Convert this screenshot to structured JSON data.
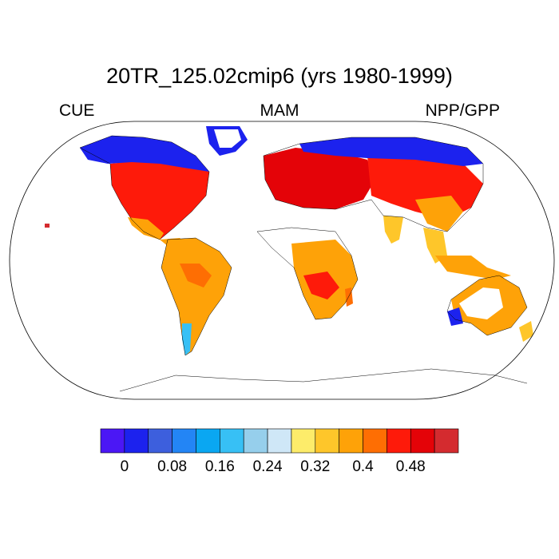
{
  "title": "20TR_125.02cmip6 (yrs 1980-1999)",
  "left_label": "CUE",
  "center_label": "MAM",
  "right_label": "NPP/GPP",
  "colorbar": {
    "colors": [
      "#4b17f5",
      "#1c22ee",
      "#3d5fdd",
      "#2385f5",
      "#0aa7f2",
      "#37c0f5",
      "#96cfec",
      "#cfe7f7",
      "#fdec6a",
      "#fec62a",
      "#fea208",
      "#fe6e03",
      "#fe1a0a",
      "#e40308",
      "#d42b2f"
    ],
    "labels": [
      "0",
      "0.08",
      "0.16",
      "0.24",
      "0.32",
      "0.4",
      "0.48"
    ]
  },
  "map_colors": {
    "ice_blue": "#1c22ee",
    "orange": "#fea208",
    "red": "#fe1a0a",
    "dark_red": "#d42b2f",
    "yellow": "#fec62a",
    "light_blue": "#37c0f5"
  }
}
